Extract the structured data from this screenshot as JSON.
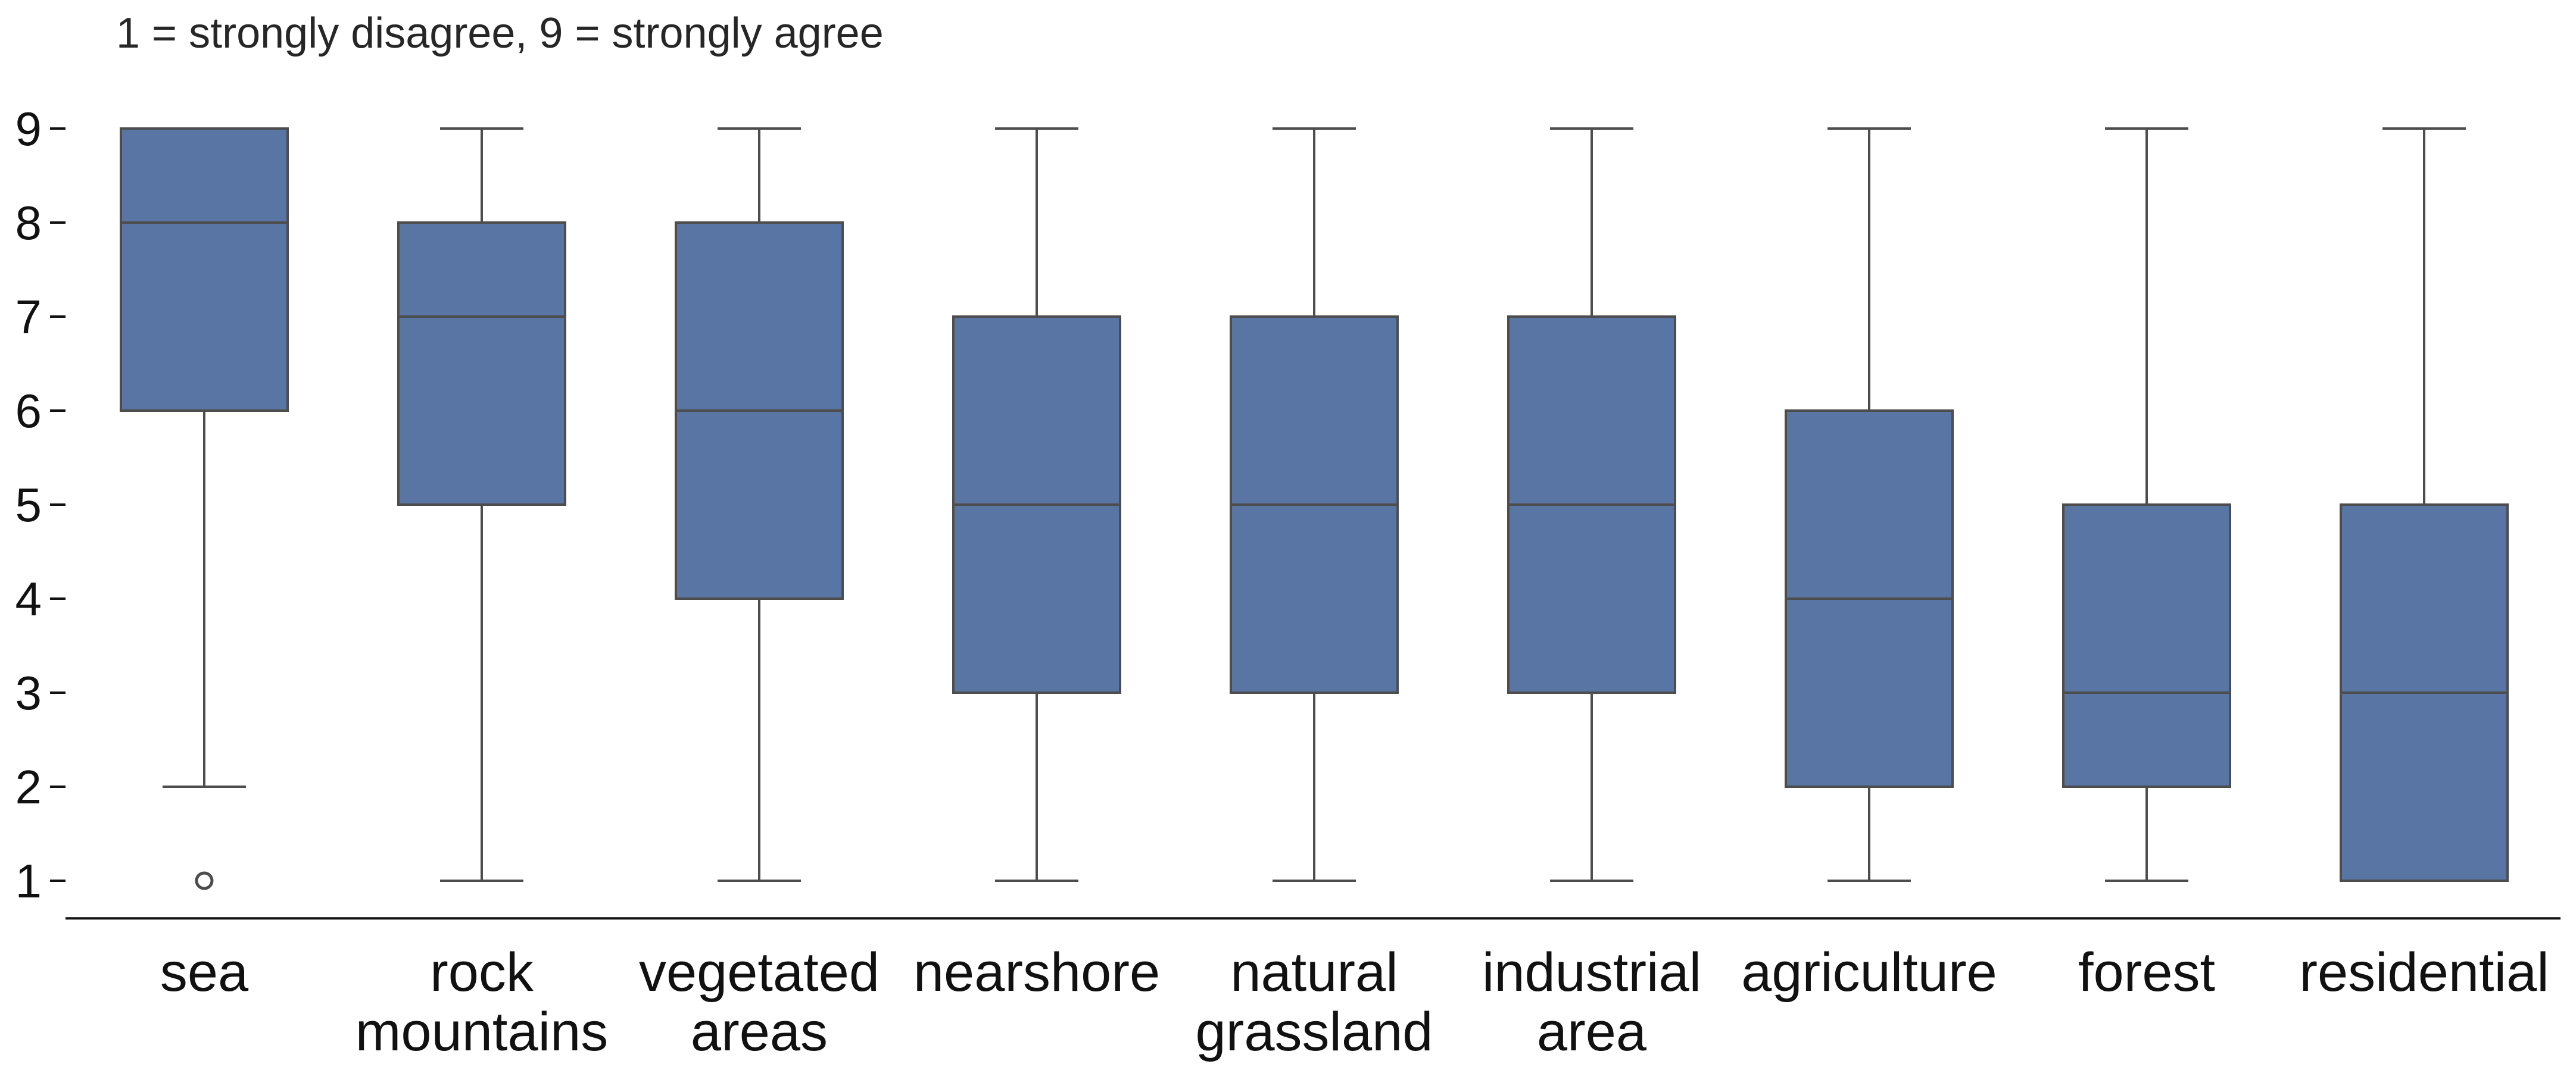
{
  "chart_data": {
    "type": "box",
    "subtitle": "1 = strongly disagree, 9 = strongly agree",
    "xlabel": "",
    "ylabel": "",
    "ylim": [
      0.6,
      9.4
    ],
    "yticks": [
      1,
      2,
      3,
      4,
      5,
      6,
      7,
      8,
      9
    ],
    "grid": false,
    "legend": "none",
    "box_color": "#5875a4",
    "line_color": "#4d4d4d",
    "categories": [
      {
        "label": [
          "sea"
        ],
        "whisker_low": 2,
        "q1": 6,
        "median": 8,
        "q3": 9,
        "whisker_high": 9,
        "outliers": [
          1
        ]
      },
      {
        "label": [
          "rock",
          "mountains"
        ],
        "whisker_low": 1,
        "q1": 5,
        "median": 7,
        "q3": 8,
        "whisker_high": 9,
        "outliers": []
      },
      {
        "label": [
          "vegetated",
          "areas"
        ],
        "whisker_low": 1,
        "q1": 4,
        "median": 6,
        "q3": 8,
        "whisker_high": 9,
        "outliers": []
      },
      {
        "label": [
          "nearshore"
        ],
        "whisker_low": 1,
        "q1": 3,
        "median": 5,
        "q3": 7,
        "whisker_high": 9,
        "outliers": []
      },
      {
        "label": [
          "natural",
          "grassland"
        ],
        "whisker_low": 1,
        "q1": 3,
        "median": 5,
        "q3": 7,
        "whisker_high": 9,
        "outliers": []
      },
      {
        "label": [
          "industrial",
          "area"
        ],
        "whisker_low": 1,
        "q1": 3,
        "median": 5,
        "q3": 7,
        "whisker_high": 9,
        "outliers": []
      },
      {
        "label": [
          "agriculture"
        ],
        "whisker_low": 1,
        "q1": 2,
        "median": 4,
        "q3": 6,
        "whisker_high": 9,
        "outliers": []
      },
      {
        "label": [
          "forest"
        ],
        "whisker_low": 1,
        "q1": 2,
        "median": 3,
        "q3": 5,
        "whisker_high": 9,
        "outliers": []
      },
      {
        "label": [
          "residential"
        ],
        "whisker_low": 1,
        "q1": 1,
        "median": 3,
        "q3": 5,
        "whisker_high": 9,
        "outliers": []
      }
    ]
  }
}
